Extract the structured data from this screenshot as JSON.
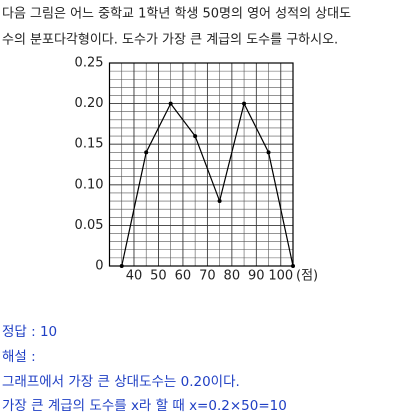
{
  "question": [
    "다음 그림은 어느 중학교 1학년 학생 50명의 영어 성적의 상대도",
    "수의 분포다각형이다. 도수가 가장 큰 계급의 도수를 구하시오."
  ],
  "chart_data": {
    "type": "line",
    "x": [
      35,
      45,
      55,
      65,
      75,
      85,
      95,
      105
    ],
    "values": [
      0,
      0.14,
      0.2,
      0.16,
      0.08,
      0.2,
      0.14,
      0
    ],
    "color": "#000000",
    "xlim": [
      30,
      105
    ],
    "xticks": [
      40,
      50,
      60,
      70,
      80,
      90,
      100
    ],
    "xlabel": "(점)",
    "ylim": [
      0,
      0.25
    ],
    "yticks": [
      0,
      {
        "value": 0.05,
        "label": "0.05"
      },
      {
        "value": 0.1,
        "label": "0.10"
      },
      {
        "value": 0.15,
        "label": "0.15"
      },
      {
        "value": 0.2,
        "label": "0.20"
      },
      {
        "value": 0.25,
        "label": "0.25"
      }
    ],
    "grid": true
  },
  "answer": {
    "result": "정답 : 10",
    "heading": "해설 :",
    "lines": [
      "그래프에서 가장 큰 상대도수는 0.20이다.",
      "가장 큰 계급의 도수를 x라 할 때 x=0.2×50=10"
    ]
  }
}
